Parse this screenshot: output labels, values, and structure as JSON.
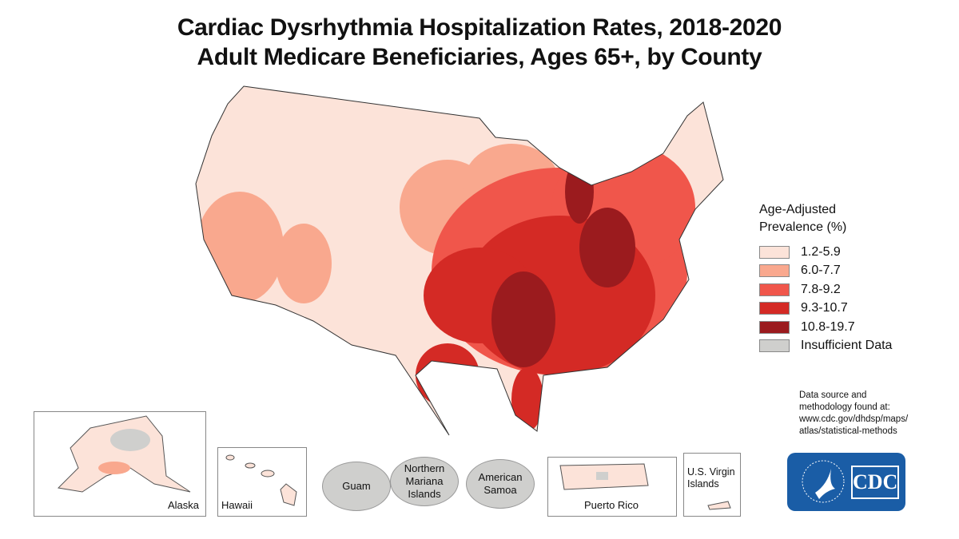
{
  "title": {
    "line1": "Cardiac Dysrhythmia Hospitalization Rates, 2018-2020",
    "line2": "Adult Medicare Beneficiaries, Ages 65+, by County"
  },
  "legend": {
    "title_line1": "Age-Adjusted",
    "title_line2": "Prevalence (%)",
    "items": [
      {
        "label": "1.2-5.9",
        "color": "#fce3d9"
      },
      {
        "label": "6.0-7.7",
        "color": "#f9a88e"
      },
      {
        "label": "7.8-9.2",
        "color": "#f0564b"
      },
      {
        "label": "9.3-10.7",
        "color": "#d42a25"
      },
      {
        "label": "10.8-19.7",
        "color": "#9b1b1e"
      },
      {
        "label": "Insufficient Data",
        "color": "#cfcfcd"
      }
    ]
  },
  "source": {
    "line1": "Data source and",
    "line2": "methodology found at:",
    "line3": "www.cdc.gov/dhdsp/maps/",
    "line4": "atlas/statistical-methods"
  },
  "insets": {
    "alaska": "Alaska",
    "hawaii": "Hawaii",
    "guam": "Guam",
    "nmi": "Northern Mariana Islands",
    "samoa": "American Samoa",
    "pr": "Puerto Rico",
    "usvi": "U.S. Virgin Islands"
  },
  "logo": {
    "text": "CDC",
    "color": "#1a5da6"
  }
}
